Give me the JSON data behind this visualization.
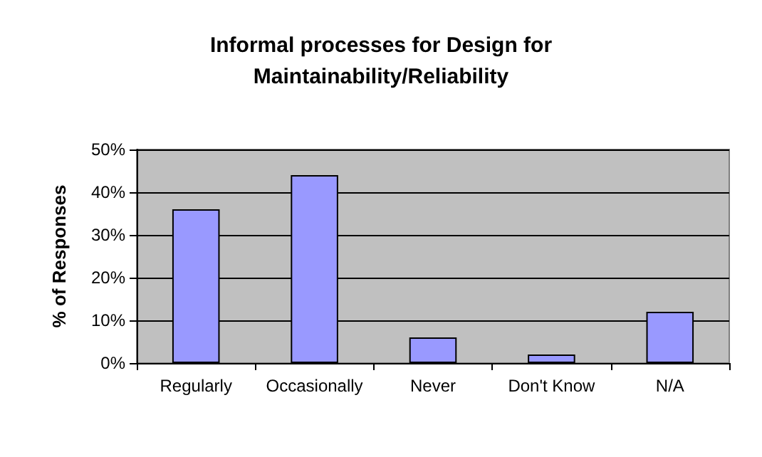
{
  "chart_data": {
    "type": "bar",
    "title": "Informal processes for Design for\nMaintainability/Reliability",
    "ylabel": "% of Responses",
    "categories": [
      "Regularly",
      "Occasionally",
      "Never",
      "Don't Know",
      "N/A"
    ],
    "values": [
      36,
      44,
      6,
      2,
      12
    ],
    "color": "#9999ff",
    "ylim": [
      0,
      50
    ],
    "yticks": [
      {
        "value": 0,
        "label": "0%"
      },
      {
        "value": 10,
        "label": "10%"
      },
      {
        "value": 20,
        "label": "20%"
      },
      {
        "value": 30,
        "label": "30%"
      },
      {
        "value": 40,
        "label": "40%"
      },
      {
        "value": 50,
        "label": "50%"
      }
    ],
    "grid": "y"
  }
}
